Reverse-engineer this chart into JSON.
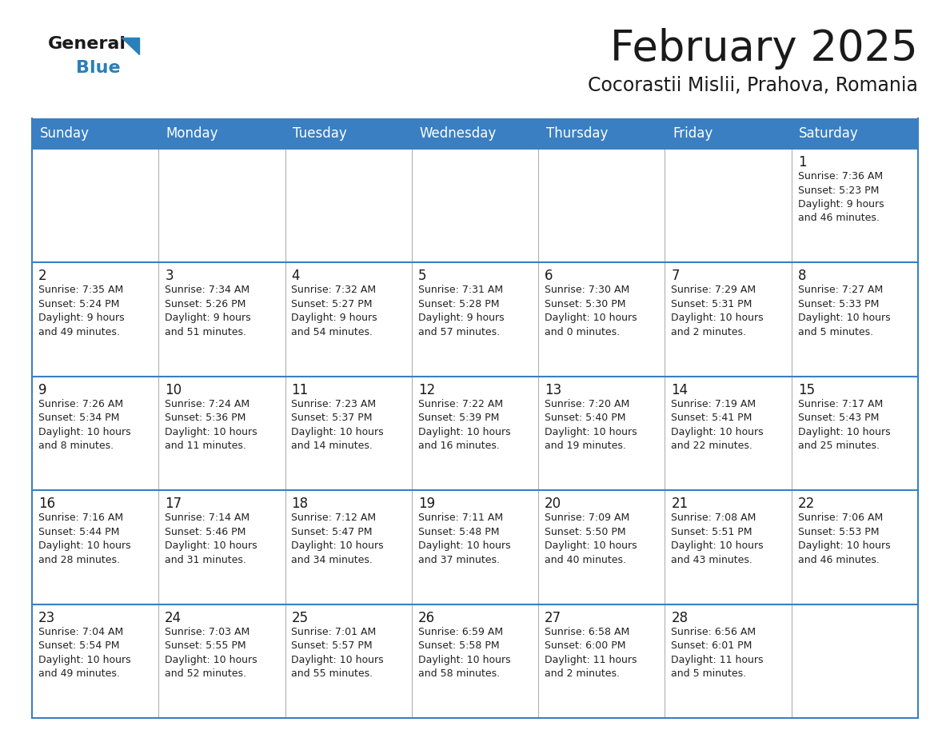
{
  "title": "February 2025",
  "subtitle": "Cocorastii Mislii, Prahova, Romania",
  "header_color": "#3a7fc1",
  "header_text_color": "#ffffff",
  "border_color": "#3a7fc1",
  "grid_line_color": "#aaaaaa",
  "day_headers": [
    "Sunday",
    "Monday",
    "Tuesday",
    "Wednesday",
    "Thursday",
    "Friday",
    "Saturday"
  ],
  "weeks": [
    [
      {
        "day": "",
        "info": ""
      },
      {
        "day": "",
        "info": ""
      },
      {
        "day": "",
        "info": ""
      },
      {
        "day": "",
        "info": ""
      },
      {
        "day": "",
        "info": ""
      },
      {
        "day": "",
        "info": ""
      },
      {
        "day": "1",
        "info": "Sunrise: 7:36 AM\nSunset: 5:23 PM\nDaylight: 9 hours\nand 46 minutes."
      }
    ],
    [
      {
        "day": "2",
        "info": "Sunrise: 7:35 AM\nSunset: 5:24 PM\nDaylight: 9 hours\nand 49 minutes."
      },
      {
        "day": "3",
        "info": "Sunrise: 7:34 AM\nSunset: 5:26 PM\nDaylight: 9 hours\nand 51 minutes."
      },
      {
        "day": "4",
        "info": "Sunrise: 7:32 AM\nSunset: 5:27 PM\nDaylight: 9 hours\nand 54 minutes."
      },
      {
        "day": "5",
        "info": "Sunrise: 7:31 AM\nSunset: 5:28 PM\nDaylight: 9 hours\nand 57 minutes."
      },
      {
        "day": "6",
        "info": "Sunrise: 7:30 AM\nSunset: 5:30 PM\nDaylight: 10 hours\nand 0 minutes."
      },
      {
        "day": "7",
        "info": "Sunrise: 7:29 AM\nSunset: 5:31 PM\nDaylight: 10 hours\nand 2 minutes."
      },
      {
        "day": "8",
        "info": "Sunrise: 7:27 AM\nSunset: 5:33 PM\nDaylight: 10 hours\nand 5 minutes."
      }
    ],
    [
      {
        "day": "9",
        "info": "Sunrise: 7:26 AM\nSunset: 5:34 PM\nDaylight: 10 hours\nand 8 minutes."
      },
      {
        "day": "10",
        "info": "Sunrise: 7:24 AM\nSunset: 5:36 PM\nDaylight: 10 hours\nand 11 minutes."
      },
      {
        "day": "11",
        "info": "Sunrise: 7:23 AM\nSunset: 5:37 PM\nDaylight: 10 hours\nand 14 minutes."
      },
      {
        "day": "12",
        "info": "Sunrise: 7:22 AM\nSunset: 5:39 PM\nDaylight: 10 hours\nand 16 minutes."
      },
      {
        "day": "13",
        "info": "Sunrise: 7:20 AM\nSunset: 5:40 PM\nDaylight: 10 hours\nand 19 minutes."
      },
      {
        "day": "14",
        "info": "Sunrise: 7:19 AM\nSunset: 5:41 PM\nDaylight: 10 hours\nand 22 minutes."
      },
      {
        "day": "15",
        "info": "Sunrise: 7:17 AM\nSunset: 5:43 PM\nDaylight: 10 hours\nand 25 minutes."
      }
    ],
    [
      {
        "day": "16",
        "info": "Sunrise: 7:16 AM\nSunset: 5:44 PM\nDaylight: 10 hours\nand 28 minutes."
      },
      {
        "day": "17",
        "info": "Sunrise: 7:14 AM\nSunset: 5:46 PM\nDaylight: 10 hours\nand 31 minutes."
      },
      {
        "day": "18",
        "info": "Sunrise: 7:12 AM\nSunset: 5:47 PM\nDaylight: 10 hours\nand 34 minutes."
      },
      {
        "day": "19",
        "info": "Sunrise: 7:11 AM\nSunset: 5:48 PM\nDaylight: 10 hours\nand 37 minutes."
      },
      {
        "day": "20",
        "info": "Sunrise: 7:09 AM\nSunset: 5:50 PM\nDaylight: 10 hours\nand 40 minutes."
      },
      {
        "day": "21",
        "info": "Sunrise: 7:08 AM\nSunset: 5:51 PM\nDaylight: 10 hours\nand 43 minutes."
      },
      {
        "day": "22",
        "info": "Sunrise: 7:06 AM\nSunset: 5:53 PM\nDaylight: 10 hours\nand 46 minutes."
      }
    ],
    [
      {
        "day": "23",
        "info": "Sunrise: 7:04 AM\nSunset: 5:54 PM\nDaylight: 10 hours\nand 49 minutes."
      },
      {
        "day": "24",
        "info": "Sunrise: 7:03 AM\nSunset: 5:55 PM\nDaylight: 10 hours\nand 52 minutes."
      },
      {
        "day": "25",
        "info": "Sunrise: 7:01 AM\nSunset: 5:57 PM\nDaylight: 10 hours\nand 55 minutes."
      },
      {
        "day": "26",
        "info": "Sunrise: 6:59 AM\nSunset: 5:58 PM\nDaylight: 10 hours\nand 58 minutes."
      },
      {
        "day": "27",
        "info": "Sunrise: 6:58 AM\nSunset: 6:00 PM\nDaylight: 11 hours\nand 2 minutes."
      },
      {
        "day": "28",
        "info": "Sunrise: 6:56 AM\nSunset: 6:01 PM\nDaylight: 11 hours\nand 5 minutes."
      },
      {
        "day": "",
        "info": ""
      }
    ]
  ],
  "logo_color_general": "#1a1a1a",
  "logo_color_blue": "#2980b9",
  "logo_triangle_color": "#2980b9",
  "title_fontsize": 38,
  "subtitle_fontsize": 17,
  "header_fontsize": 12,
  "day_num_fontsize": 12,
  "info_fontsize": 9
}
